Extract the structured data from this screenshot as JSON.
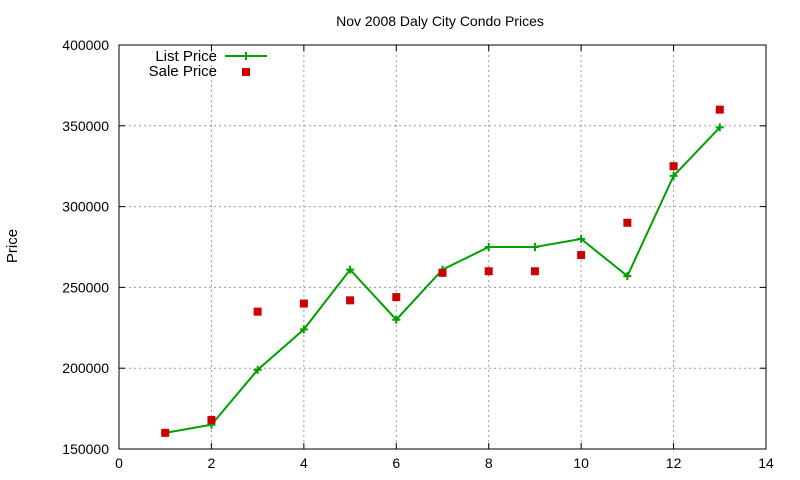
{
  "chart_data": {
    "type": "line",
    "title": "Nov 2008 Daly City Condo Prices",
    "xlabel": "",
    "ylabel": "Price",
    "xlim": [
      0,
      14
    ],
    "ylim": [
      150000,
      400000
    ],
    "x_ticks": [
      0,
      2,
      4,
      6,
      8,
      10,
      12,
      14
    ],
    "y_ticks": [
      150000,
      200000,
      250000,
      300000,
      350000,
      400000
    ],
    "grid": true,
    "legend_position": "top-left",
    "series": [
      {
        "name": "List Price",
        "style": "line+cross",
        "color": "#00a000",
        "x": [
          1,
          2,
          3,
          4,
          5,
          6,
          7,
          8,
          9,
          10,
          11,
          12,
          13
        ],
        "y": [
          160000,
          165000,
          199000,
          224000,
          261000,
          230000,
          261000,
          275000,
          275000,
          280000,
          257000,
          319000,
          349000
        ]
      },
      {
        "name": "Sale Price",
        "style": "square-points",
        "color": "#cc0000",
        "x": [
          1,
          2,
          3,
          4,
          5,
          6,
          7,
          8,
          9,
          10,
          11,
          12,
          13
        ],
        "y": [
          160000,
          168000,
          235000,
          240000,
          242000,
          244000,
          259000,
          260000,
          260000,
          270000,
          290000,
          325000,
          360000
        ]
      }
    ]
  }
}
